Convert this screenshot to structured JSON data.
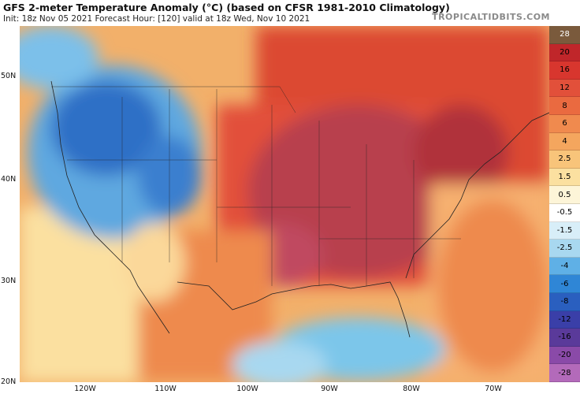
{
  "header": {
    "title": "GFS 2-meter Temperature Anomaly (°C) (based on CFSR 1981-2010 Climatology)",
    "subtitle": "Init: 18z Nov 05 2021   Forecast Hour: [120]   valid at 18z Wed, Nov 10 2021",
    "brand": "TROPICALTIDBITS.COM"
  },
  "map": {
    "projection": "lat-lon",
    "lon_range": [
      -127,
      -65
    ],
    "lat_range": [
      20,
      54
    ],
    "lat_labels": [
      "50N",
      "40N",
      "30N",
      "20N"
    ],
    "lon_labels": [
      "120W",
      "110W",
      "100W",
      "90W",
      "80W",
      "70W"
    ]
  },
  "legend": {
    "levels": [
      "28",
      "20",
      "16",
      "12",
      "8",
      "6",
      "4",
      "2.5",
      "1.5",
      "0.5",
      "-0.5",
      "-1.5",
      "-2.5",
      "-4",
      "-6",
      "-8",
      "-12",
      "-16",
      "-20",
      "-28"
    ],
    "colors": [
      "#7a5a3c",
      "#c0262a",
      "#d8362e",
      "#e2503a",
      "#ea6a40",
      "#f08a4e",
      "#f4a65e",
      "#f8c47a",
      "#fbe0a0",
      "#fdf5d8",
      "#ffffff",
      "#d8eef8",
      "#a8d8f0",
      "#5fb0e6",
      "#2f86d6",
      "#2a5fbf",
      "#3a3fa8",
      "#5a3a9a",
      "#8a4aa8",
      "#b36aba"
    ]
  }
}
